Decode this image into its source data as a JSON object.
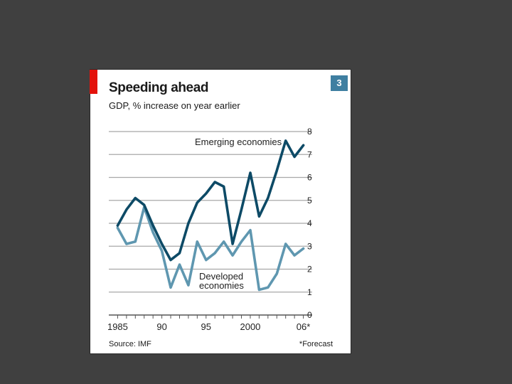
{
  "chart_data": {
    "type": "line",
    "title": "Speeding ahead",
    "subtitle": "GDP, % increase on year earlier",
    "badge": "3",
    "source": "Source: IMF",
    "note": "*Forecast",
    "xlabel": "",
    "ylabel": "",
    "ylim": [
      0,
      8
    ],
    "xlim": [
      1984,
      2007
    ],
    "y_ticks": [
      "0",
      "1",
      "2",
      "3",
      "4",
      "5",
      "6",
      "7",
      "8"
    ],
    "x_ticks": [
      {
        "value": 1985,
        "label": "1985"
      },
      {
        "value": 1990,
        "label": "90"
      },
      {
        "value": 1995,
        "label": "95"
      },
      {
        "value": 2000,
        "label": "2000"
      },
      {
        "value": 2006,
        "label": "06*"
      }
    ],
    "grid": true,
    "x": [
      1985,
      1986,
      1987,
      1988,
      1989,
      1990,
      1991,
      1992,
      1993,
      1994,
      1995,
      1996,
      1997,
      1998,
      1999,
      2000,
      2001,
      2002,
      2003,
      2004,
      2005,
      2006
    ],
    "series": [
      {
        "name": "Emerging economies",
        "label": "Emerging economies",
        "color": "#0d4a66",
        "values": [
          3.9,
          4.6,
          5.1,
          4.8,
          3.9,
          3.1,
          2.4,
          2.7,
          4.0,
          4.9,
          5.3,
          5.8,
          5.6,
          3.1,
          4.6,
          6.2,
          4.3,
          5.1,
          6.3,
          7.6,
          6.9,
          7.4
        ]
      },
      {
        "name": "Developed economies",
        "label_lines": [
          "Developed",
          "economies"
        ],
        "color": "#5f97b0",
        "values": [
          3.8,
          3.1,
          3.2,
          4.7,
          3.6,
          2.8,
          1.2,
          2.2,
          1.3,
          3.2,
          2.4,
          2.7,
          3.2,
          2.6,
          3.2,
          3.7,
          1.1,
          1.2,
          1.8,
          3.1,
          2.6,
          2.9
        ]
      }
    ]
  }
}
